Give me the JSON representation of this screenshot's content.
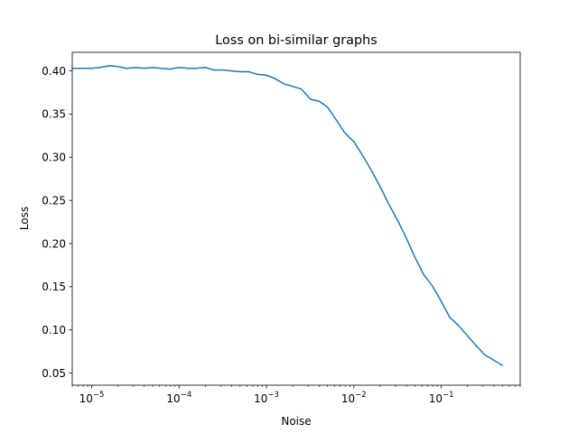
{
  "chart_data": {
    "type": "line",
    "title": "Loss on bi-similar graphs",
    "xlabel": "Noise",
    "ylabel": "Loss",
    "xscale": "log",
    "xlim": [
      6e-06,
      0.8
    ],
    "ylim": [
      0.036,
      0.4215
    ],
    "grid": false,
    "x_major_ticks": [
      1e-05,
      0.0001,
      0.001,
      0.01,
      0.1
    ],
    "x_tick_labels": [
      {
        "base": "10",
        "exp": "−5"
      },
      {
        "base": "10",
        "exp": "−4"
      },
      {
        "base": "10",
        "exp": "−3"
      },
      {
        "base": "10",
        "exp": "−2"
      },
      {
        "base": "10",
        "exp": "−1"
      }
    ],
    "y_ticks": [
      0.05,
      0.1,
      0.15,
      0.2,
      0.25,
      0.3,
      0.35,
      0.4
    ],
    "y_tick_labels": [
      "0.05",
      "0.10",
      "0.15",
      "0.20",
      "0.25",
      "0.30",
      "0.35",
      "0.40"
    ],
    "series": [
      {
        "color": "#1f77b4",
        "x": [
          6e-06,
          1e-05,
          1.25e-05,
          1.6e-05,
          2e-05,
          2.5e-05,
          3.2e-05,
          4e-05,
          5e-05,
          6.3e-05,
          7.9e-05,
          0.0001,
          0.000126,
          0.000158,
          0.0002,
          0.00025,
          0.00032,
          0.0004,
          0.0005,
          0.00063,
          0.00079,
          0.001,
          0.00126,
          0.00158,
          0.002,
          0.0025,
          0.0032,
          0.004,
          0.005,
          0.0063,
          0.0079,
          0.01,
          0.0126,
          0.0158,
          0.02,
          0.025,
          0.032,
          0.04,
          0.05,
          0.063,
          0.079,
          0.1,
          0.126,
          0.158,
          0.2,
          0.25,
          0.316,
          0.398,
          0.5
        ],
        "y": [
          0.403,
          0.403,
          0.404,
          0.406,
          0.405,
          0.403,
          0.404,
          0.403,
          0.404,
          0.403,
          0.402,
          0.404,
          0.403,
          0.403,
          0.404,
          0.401,
          0.401,
          0.4,
          0.399,
          0.399,
          0.396,
          0.395,
          0.391,
          0.385,
          0.382,
          0.379,
          0.367,
          0.365,
          0.358,
          0.343,
          0.328,
          0.318,
          0.302,
          0.285,
          0.266,
          0.246,
          0.226,
          0.206,
          0.184,
          0.164,
          0.151,
          0.133,
          0.114,
          0.105,
          0.093,
          0.082,
          0.071,
          0.065,
          0.059
        ]
      }
    ]
  }
}
